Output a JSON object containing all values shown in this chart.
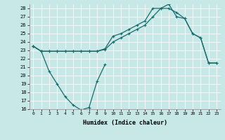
{
  "xlabel": "Humidex (Indice chaleur)",
  "bg_color": "#c8e8e8",
  "line_color": "#1a6b6b",
  "ylim": [
    16,
    28.5
  ],
  "xlim": [
    -0.5,
    23.5
  ],
  "yticks": [
    16,
    17,
    18,
    19,
    20,
    21,
    22,
    23,
    24,
    25,
    26,
    27,
    28
  ],
  "xticks": [
    0,
    1,
    2,
    3,
    4,
    5,
    6,
    7,
    8,
    9,
    10,
    11,
    12,
    13,
    14,
    15,
    16,
    17,
    18,
    19,
    20,
    21,
    22,
    23
  ],
  "line1_x": [
    0,
    1,
    2,
    3,
    4,
    5,
    6,
    7,
    8,
    9
  ],
  "line1_y": [
    23.5,
    22.9,
    20.5,
    19.0,
    17.5,
    16.5,
    15.9,
    16.2,
    19.3,
    21.3
  ],
  "line2_x": [
    0,
    1,
    2,
    3,
    4,
    5,
    6,
    7,
    8,
    9,
    10,
    11,
    12,
    13,
    14,
    15,
    16,
    17,
    18,
    19,
    20,
    21,
    22,
    23
  ],
  "line2_y": [
    23.5,
    22.9,
    22.9,
    22.9,
    22.9,
    22.9,
    22.9,
    22.9,
    22.9,
    23.1,
    24.0,
    24.5,
    25.0,
    25.5,
    26.0,
    27.0,
    28.0,
    28.0,
    27.5,
    26.8,
    25.0,
    24.5,
    21.5,
    21.5
  ],
  "line3_x": [
    0,
    1,
    2,
    3,
    4,
    5,
    6,
    7,
    8,
    9,
    10,
    11,
    12,
    13,
    14,
    15,
    16,
    17,
    18,
    19,
    20,
    21,
    22,
    23
  ],
  "line3_y": [
    23.5,
    22.9,
    22.9,
    22.9,
    22.9,
    22.9,
    22.9,
    22.9,
    22.9,
    23.2,
    24.7,
    25.0,
    25.5,
    26.0,
    26.5,
    28.0,
    28.0,
    28.5,
    27.0,
    26.8,
    25.0,
    24.5,
    21.5,
    21.5
  ]
}
